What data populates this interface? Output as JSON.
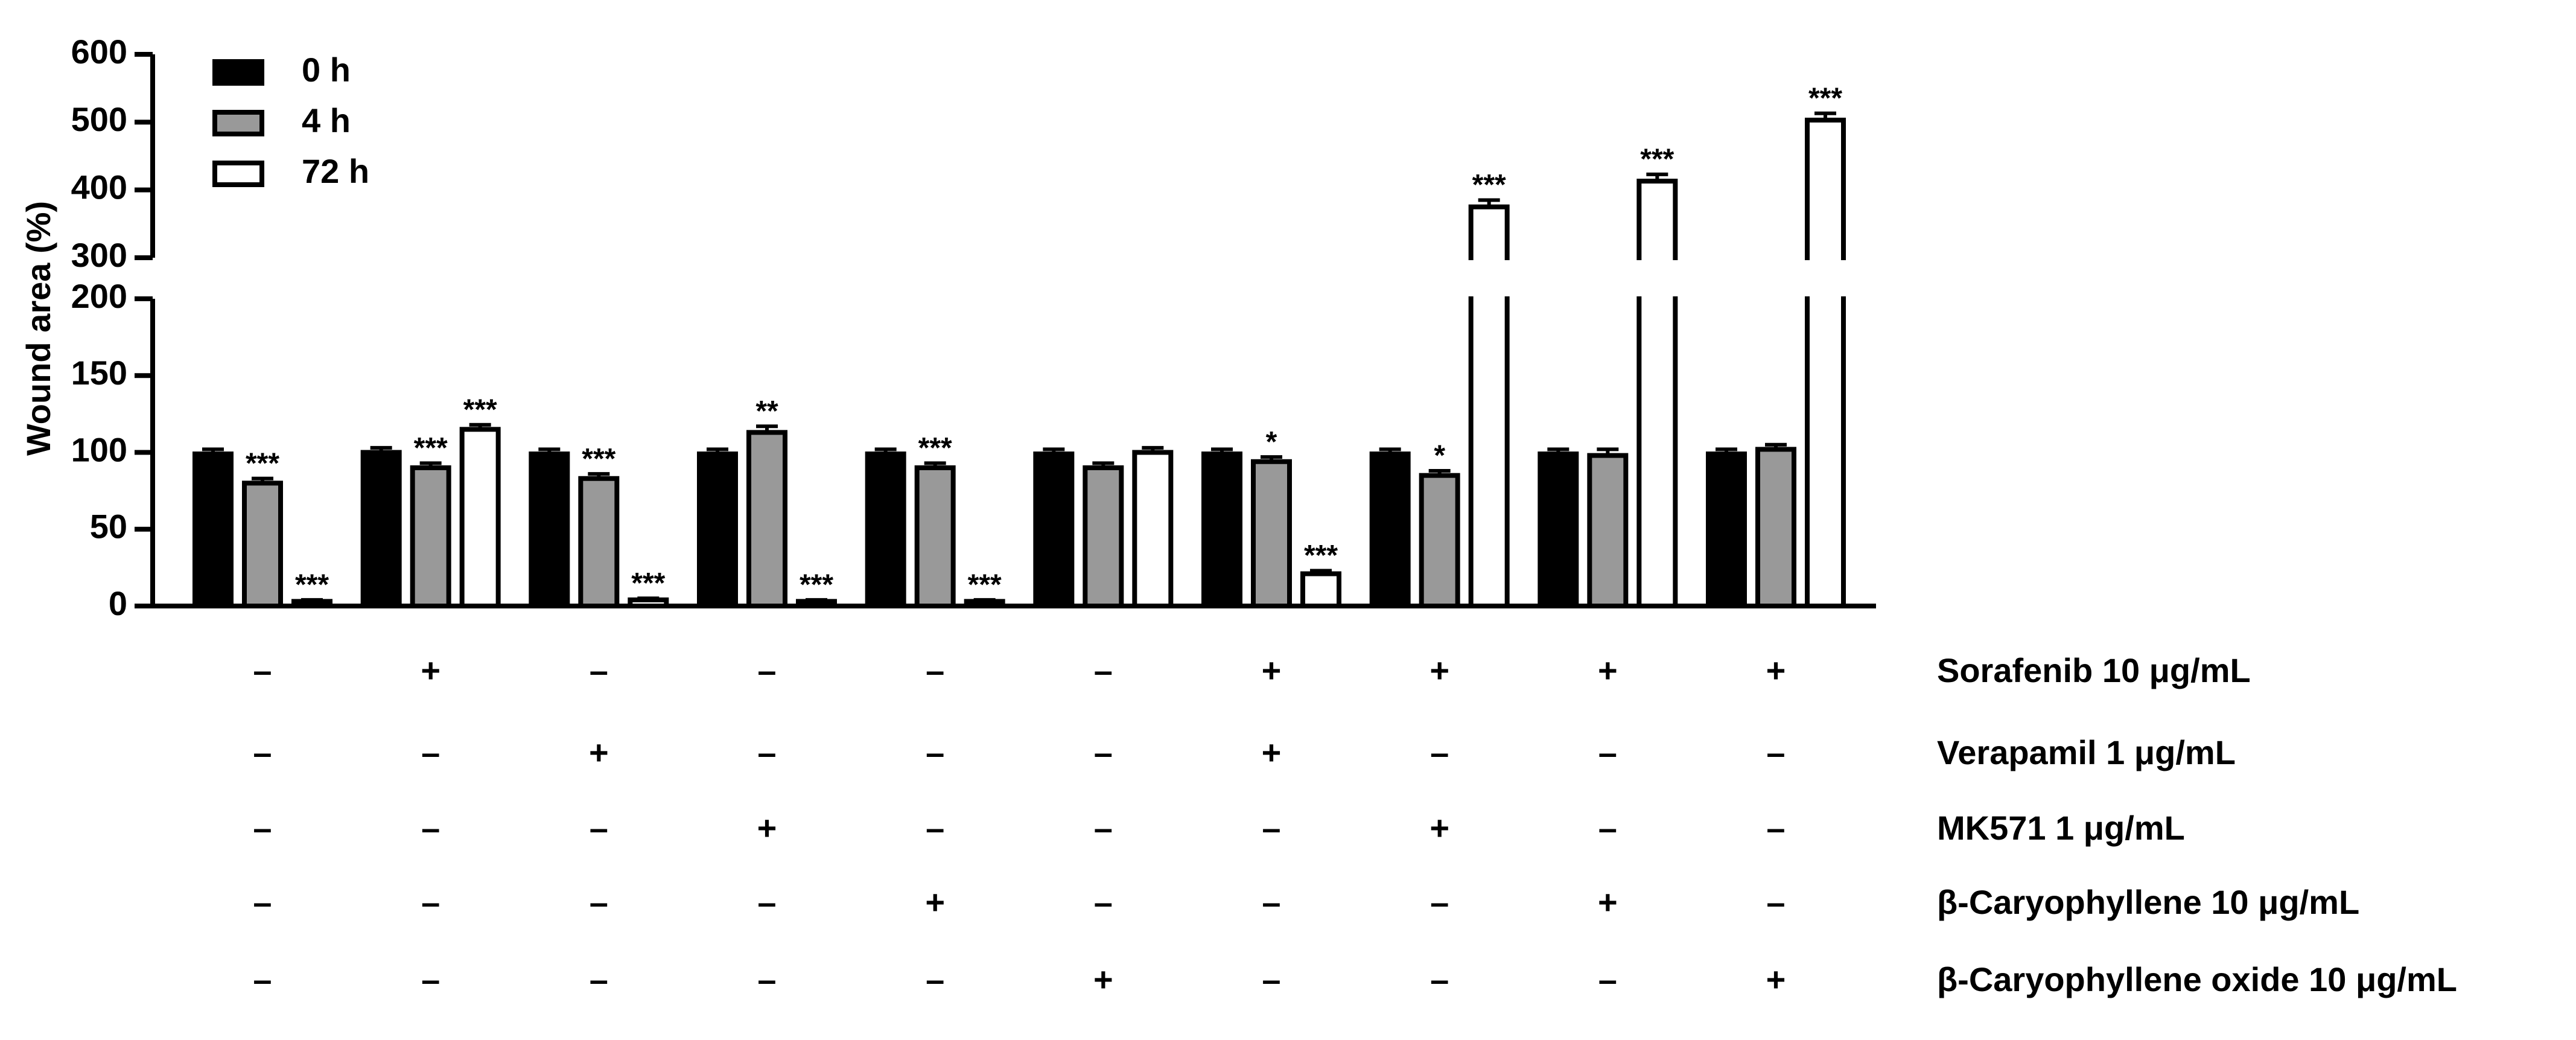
{
  "chart_data": {
    "type": "bar",
    "y_label": "Wound area (%)",
    "categories": [
      null,
      null,
      null,
      null,
      null,
      null,
      null,
      null,
      null,
      null
    ],
    "ylim": [
      0,
      600
    ],
    "yticks": [
      0,
      50,
      100,
      150,
      200,
      300,
      400,
      500,
      600
    ],
    "y_break": [
      200,
      300
    ],
    "series": [
      {
        "name": "0 h",
        "color": "#000000",
        "values": [
          99,
          100,
          99,
          99,
          99,
          99,
          99,
          99,
          99,
          99
        ],
        "errors": [
          3,
          3,
          3,
          3,
          3,
          3,
          3,
          3,
          3,
          3
        ],
        "annotations": [
          null,
          null,
          null,
          null,
          null,
          null,
          null,
          null,
          null,
          null
        ]
      },
      {
        "name": "4 h",
        "color": "#999999",
        "values": [
          80,
          90,
          83,
          113,
          90,
          90,
          94,
          85,
          98,
          102
        ],
        "errors": [
          3,
          3,
          3,
          4,
          3,
          3,
          3,
          3,
          4,
          3
        ],
        "annotations": [
          "***",
          "***",
          "***",
          "**",
          "***",
          null,
          "*",
          "*",
          null,
          null
        ]
      },
      {
        "name": "72 h",
        "color": "#ffffff",
        "values": [
          3,
          115,
          4,
          3,
          3,
          100,
          21,
          375,
          413,
          503
        ],
        "errors": [
          1,
          3,
          1,
          1,
          1,
          3,
          2,
          10,
          10,
          10
        ],
        "annotations": [
          "***",
          "***",
          "***",
          "***",
          "***",
          null,
          "***",
          "***",
          "***",
          "***"
        ]
      }
    ],
    "treatments": [
      {
        "label": "Sorafenib 10 μg/mL",
        "signs": [
          "–",
          "+",
          "–",
          "–",
          "–",
          "–",
          "+",
          "+",
          "+",
          "+"
        ]
      },
      {
        "label": "Verapamil 1 μg/mL",
        "signs": [
          "–",
          "–",
          "+",
          "–",
          "–",
          "–",
          "+",
          "–",
          "–",
          "–"
        ]
      },
      {
        "label": "MK571 1 μg/mL",
        "signs": [
          "–",
          "–",
          "–",
          "+",
          "–",
          "–",
          "–",
          "+",
          "–",
          "–"
        ]
      },
      {
        "label": "β-Caryophyllene 10 μg/mL",
        "signs": [
          "–",
          "–",
          "–",
          "–",
          "+",
          "–",
          "–",
          "–",
          "+",
          "–"
        ]
      },
      {
        "label": "β-Caryophyllene oxide 10 μg/mL",
        "signs": [
          "–",
          "–",
          "–",
          "–",
          "–",
          "+",
          "–",
          "–",
          "–",
          "+"
        ]
      }
    ],
    "legend": "upper left"
  }
}
